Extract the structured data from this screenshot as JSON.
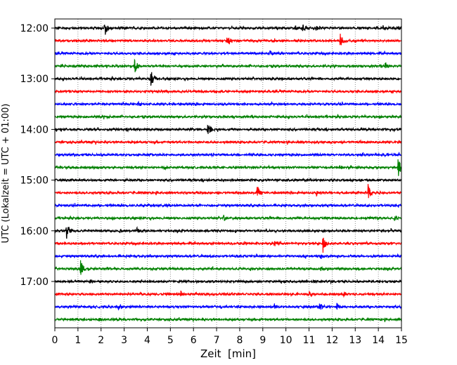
{
  "chart_data": {
    "type": "line",
    "title": "",
    "xlabel": "Zeit  [min]",
    "ylabel": "UTC (Lokalzeit = UTC + 01:00)",
    "xlim": [
      0,
      15
    ],
    "x_ticks": [
      0,
      1,
      2,
      3,
      4,
      5,
      6,
      7,
      8,
      9,
      10,
      11,
      12,
      13,
      14,
      15
    ],
    "grid": {
      "x": true,
      "y": false,
      "style": "dotted"
    },
    "y_ticks": [
      {
        "label": "12:00",
        "row": 0
      },
      {
        "label": "13:00",
        "row": 4
      },
      {
        "label": "14:00",
        "row": 8
      },
      {
        "label": "15:00",
        "row": 12
      },
      {
        "label": "16:00",
        "row": 16
      },
      {
        "label": "17:00",
        "row": 20
      }
    ],
    "row_minutes": 15,
    "trace_colors": [
      "#000000",
      "#ff0000",
      "#0000ff",
      "#008000"
    ],
    "series": [
      {
        "start": "12:00",
        "events": [
          {
            "t": 2.15,
            "amp": 1.0
          },
          {
            "t": 10.7,
            "amp": 0.6
          },
          {
            "t": 10.4,
            "amp": 0.3
          },
          {
            "t": 11.3,
            "amp": 0.3
          },
          {
            "t": 14.2,
            "amp": 0.35
          },
          {
            "t": 14.8,
            "amp": 0.3
          }
        ]
      },
      {
        "start": "12:15",
        "events": [
          {
            "t": 7.45,
            "amp": 0.7
          },
          {
            "t": 12.35,
            "amp": 0.75
          }
        ]
      },
      {
        "start": "12:30",
        "events": [
          {
            "t": 9.3,
            "amp": 0.25
          }
        ]
      },
      {
        "start": "12:45",
        "events": [
          {
            "t": 3.45,
            "amp": 1.0
          },
          {
            "t": 14.3,
            "amp": 0.5
          }
        ]
      },
      {
        "start": "13:00",
        "events": [
          {
            "t": 4.15,
            "amp": 1.0
          }
        ]
      },
      {
        "start": "13:15",
        "events": [
          {
            "t": 4.6,
            "amp": 0.2
          }
        ]
      },
      {
        "start": "13:30",
        "events": [
          {
            "t": 3.6,
            "amp": 0.25
          }
        ]
      },
      {
        "start": "13:45",
        "events": [
          {
            "t": 2.1,
            "amp": 0.2
          }
        ]
      },
      {
        "start": "14:00",
        "events": [
          {
            "t": 3.1,
            "amp": 0.3
          },
          {
            "t": 6.6,
            "amp": 0.9
          }
        ]
      },
      {
        "start": "14:15",
        "events": [
          {
            "t": 11.2,
            "amp": 0.2
          }
        ]
      },
      {
        "start": "14:30",
        "events": [
          {
            "t": 6.0,
            "amp": 0.2
          }
        ]
      },
      {
        "start": "14:45",
        "events": [
          {
            "t": 4.65,
            "amp": 0.25
          },
          {
            "t": 12.3,
            "amp": 0.3
          },
          {
            "t": 14.85,
            "amp": 1.0
          }
        ]
      },
      {
        "start": "15:00",
        "events": [
          {
            "t": 7.2,
            "amp": 0.2
          }
        ]
      },
      {
        "start": "15:15",
        "events": [
          {
            "t": 8.75,
            "amp": 0.9
          },
          {
            "t": 11.3,
            "amp": 0.4
          },
          {
            "t": 13.55,
            "amp": 1.0
          }
        ]
      },
      {
        "start": "15:30",
        "events": [
          {
            "t": 4.8,
            "amp": 0.2
          }
        ]
      },
      {
        "start": "15:45",
        "events": [
          {
            "t": 7.3,
            "amp": 0.3
          },
          {
            "t": 13.6,
            "amp": 0.3
          },
          {
            "t": 14.7,
            "amp": 0.25
          }
        ]
      },
      {
        "start": "16:00",
        "events": [
          {
            "t": 0.5,
            "amp": 1.0
          },
          {
            "t": 3.55,
            "amp": 0.35
          },
          {
            "t": 2.8,
            "amp": 0.25
          }
        ]
      },
      {
        "start": "16:15",
        "events": [
          {
            "t": 9.5,
            "amp": 0.4
          },
          {
            "t": 11.6,
            "amp": 1.0
          },
          {
            "t": 7.5,
            "amp": 0.25
          }
        ]
      },
      {
        "start": "16:30",
        "events": [
          {
            "t": 11.5,
            "amp": 0.3
          }
        ]
      },
      {
        "start": "16:45",
        "events": [
          {
            "t": 1.1,
            "amp": 1.0
          },
          {
            "t": 11.5,
            "amp": 0.25
          }
        ]
      },
      {
        "start": "17:00",
        "events": [
          {
            "t": 1.5,
            "amp": 0.25
          },
          {
            "t": 11.2,
            "amp": 0.3
          }
        ]
      },
      {
        "start": "17:15",
        "events": [
          {
            "t": 5.45,
            "amp": 0.4
          },
          {
            "t": 11.0,
            "amp": 0.3
          },
          {
            "t": 12.5,
            "amp": 0.25
          }
        ]
      },
      {
        "start": "17:30",
        "events": [
          {
            "t": 2.75,
            "amp": 0.35
          },
          {
            "t": 11.45,
            "amp": 0.4
          },
          {
            "t": 12.2,
            "amp": 0.55
          },
          {
            "t": 9.5,
            "amp": 0.3
          }
        ]
      },
      {
        "start": "17:45",
        "events": [
          {
            "t": 1.9,
            "amp": 0.25
          }
        ]
      }
    ]
  }
}
